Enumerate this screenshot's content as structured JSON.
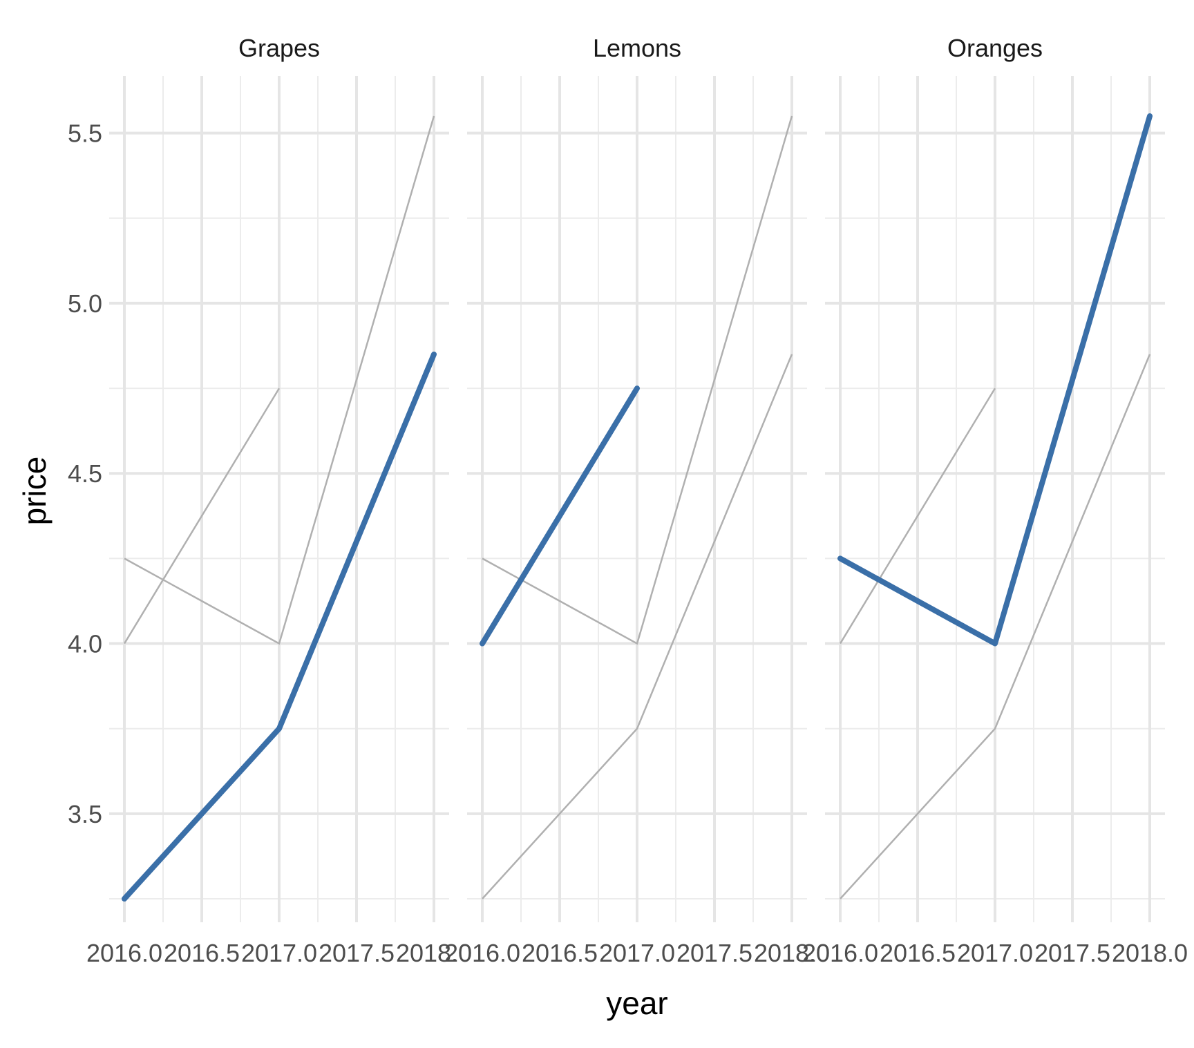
{
  "chart_data": {
    "type": "line",
    "facet_by": "fruit",
    "panels": [
      "Grapes",
      "Lemons",
      "Oranges"
    ],
    "xlabel": "year",
    "ylabel": "price",
    "xlim": [
      2016.0,
      2018.0
    ],
    "ylim": [
      3.25,
      5.55
    ],
    "x_ticks": [
      "2016.0",
      "2016.5",
      "2017.0",
      "2017.5",
      "2018.0"
    ],
    "y_ticks": [
      "3.5",
      "4.0",
      "4.5",
      "5.0",
      "5.5"
    ],
    "series": [
      {
        "name": "Grapes",
        "points": [
          [
            2016,
            3.25
          ],
          [
            2017,
            3.75
          ],
          [
            2018,
            4.85
          ]
        ]
      },
      {
        "name": "Lemons",
        "points": [
          [
            2016,
            4.0
          ],
          [
            2017,
            4.75
          ]
        ]
      },
      {
        "name": "Oranges",
        "points": [
          [
            2016,
            4.25
          ],
          [
            2017,
            4.0
          ],
          [
            2018,
            5.55
          ]
        ]
      }
    ],
    "grid": true,
    "legend": "none",
    "colors": {
      "highlight": "#3a6fa8",
      "background_series": "#b0b0b0",
      "grid_major": "#e5e5e5",
      "grid_minor": "#ececec"
    }
  }
}
